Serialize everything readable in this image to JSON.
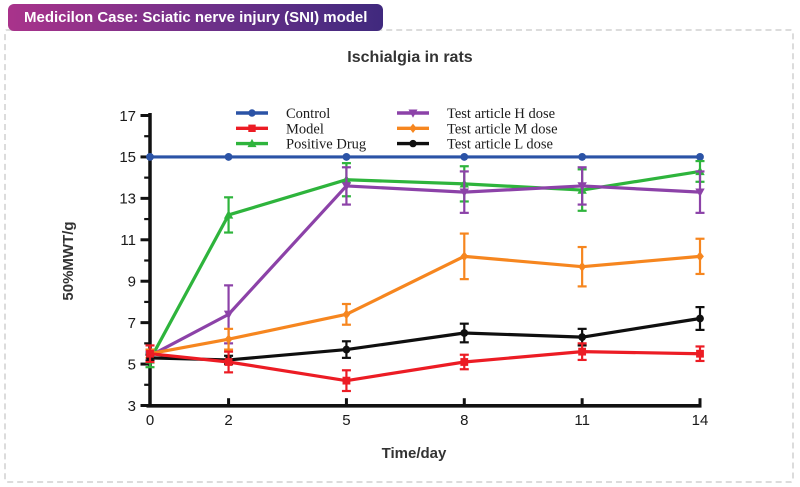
{
  "badge": {
    "label": "Medicilon Case: Sciatic nerve injury (SNI) model"
  },
  "chart_data": {
    "type": "line",
    "title": "Ischialgia in rats",
    "xlabel": "Time/day",
    "ylabel": "50%MWT/g",
    "x": [
      0,
      2,
      5,
      8,
      11,
      14
    ],
    "x_tick_labels": [
      "0",
      "2",
      "5",
      "8",
      "11",
      "14"
    ],
    "y_ticks": [
      3,
      5,
      7,
      9,
      11,
      13,
      15,
      17
    ],
    "y_minor_ticks": [
      4,
      6,
      8,
      10,
      12,
      14,
      16
    ],
    "xlim": [
      0,
      14
    ],
    "ylim": [
      3,
      17
    ],
    "grid": false,
    "legend_position": "inside-top, two columns",
    "axis_color": "#111111",
    "tick_label_color": "#1a1a1a",
    "series": [
      {
        "name": "Control",
        "color": "#2b53a6",
        "marker": "circle",
        "values": [
          15,
          15,
          15,
          15,
          15,
          15
        ],
        "errors": [
          0,
          0,
          0,
          0,
          0,
          0
        ]
      },
      {
        "name": "Model",
        "color": "#ec1c24",
        "marker": "square",
        "values": [
          5.5,
          5.1,
          4.2,
          5.1,
          5.6,
          5.5
        ],
        "errors": [
          0.4,
          0.5,
          0.5,
          0.35,
          0.4,
          0.35
        ]
      },
      {
        "name": "Positive Drug",
        "color": "#2eb43c",
        "marker": "triangle-up",
        "values": [
          5.2,
          12.2,
          13.9,
          13.7,
          13.4,
          14.3
        ],
        "errors": [
          0.35,
          0.85,
          0.8,
          0.85,
          1.0,
          0.5
        ]
      },
      {
        "name": "Test article H dose",
        "color": "#8c42a8",
        "marker": "triangle-down",
        "values": [
          5.4,
          7.4,
          13.6,
          13.3,
          13.6,
          13.3
        ],
        "errors": [
          0.2,
          1.4,
          0.9,
          1.0,
          0.9,
          1.0
        ]
      },
      {
        "name": "Test article M dose",
        "color": "#f6861f",
        "marker": "diamond",
        "values": [
          5.5,
          6.2,
          7.4,
          10.2,
          9.7,
          10.2
        ],
        "errors": [
          0.2,
          0.5,
          0.5,
          1.1,
          0.95,
          0.85
        ]
      },
      {
        "name": "Test article L dose",
        "color": "#0f0f0f",
        "marker": "circle",
        "values": [
          5.3,
          5.2,
          5.7,
          6.5,
          6.3,
          7.2
        ],
        "errors": [
          0.15,
          0.2,
          0.4,
          0.45,
          0.4,
          0.55
        ]
      }
    ],
    "draw_order": [
      0,
      2,
      3,
      4,
      5,
      1
    ]
  }
}
